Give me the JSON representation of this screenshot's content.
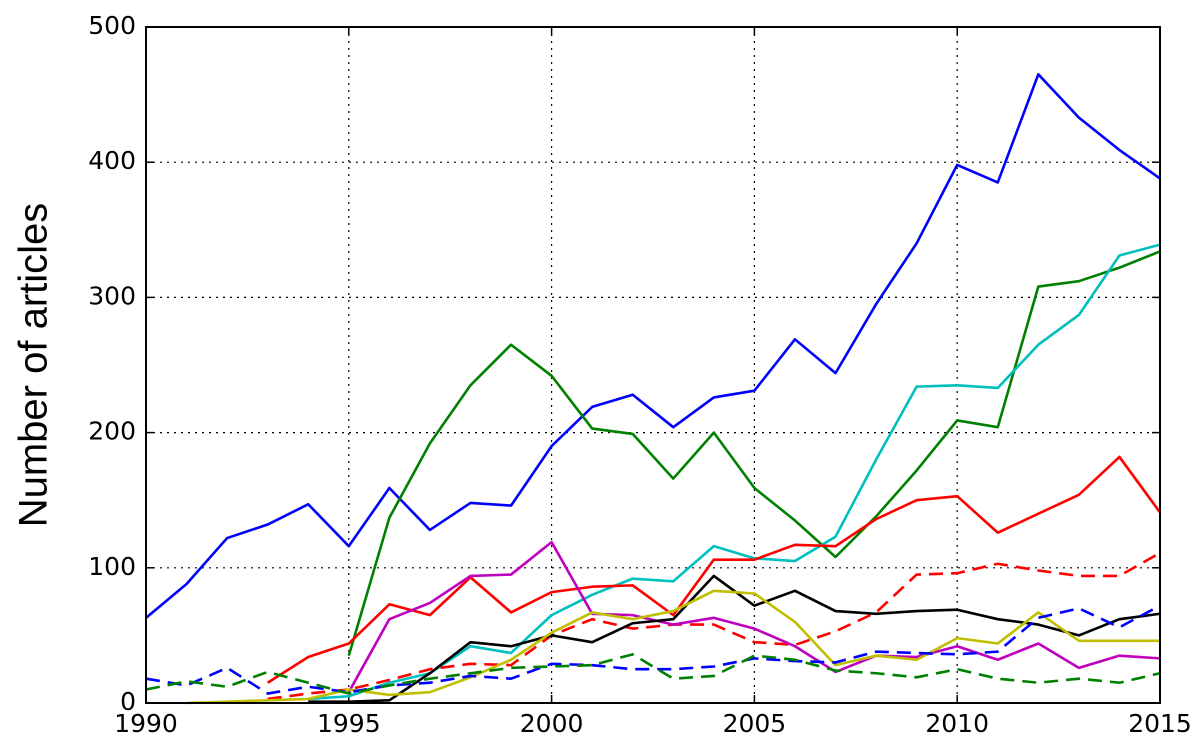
{
  "chart_data": {
    "type": "line",
    "y_label": "Number of articles",
    "x": [
      1990,
      1991,
      1992,
      1993,
      1994,
      1995,
      1996,
      1997,
      1998,
      1999,
      2000,
      2001,
      2002,
      2003,
      2004,
      2005,
      2006,
      2007,
      2008,
      2009,
      2010,
      2011,
      2012,
      2013,
      2014,
      2015
    ],
    "xlim": [
      1990,
      2015
    ],
    "xticks": [
      1990,
      1995,
      2000,
      2005,
      2010,
      2015
    ],
    "ylim": [
      0,
      500
    ],
    "yticks": [
      0,
      100,
      200,
      300,
      400,
      500
    ],
    "grid": true,
    "series": [
      {
        "color": "#0000ff",
        "dashed": false,
        "values": [
          63,
          88,
          122,
          132,
          147,
          116,
          159,
          128,
          148,
          146,
          190,
          219,
          228,
          204,
          226,
          231,
          269,
          244,
          295,
          340,
          398,
          385,
          465,
          433,
          409,
          388
        ]
      },
      {
        "color": "#008000",
        "dashed": false,
        "values": [
          null,
          null,
          null,
          null,
          null,
          35,
          137,
          192,
          235,
          265,
          242,
          203,
          199,
          166,
          200,
          159,
          135,
          108,
          138,
          172,
          209,
          204,
          308,
          312,
          322,
          334
        ]
      },
      {
        "color": "#00bfbf",
        "dashed": false,
        "values": [
          null,
          null,
          null,
          null,
          3,
          5,
          15,
          22,
          42,
          37,
          65,
          80,
          92,
          90,
          116,
          107,
          105,
          123,
          180,
          234,
          235,
          233,
          265,
          287,
          331,
          339
        ]
      },
      {
        "color": "#ff0000",
        "dashed": false,
        "values": [
          null,
          null,
          null,
          15,
          34,
          44,
          73,
          65,
          93,
          67,
          82,
          86,
          87,
          65,
          106,
          106,
          117,
          116,
          136,
          150,
          153,
          126,
          140,
          154,
          182,
          141
        ]
      },
      {
        "color": "#ff0000",
        "dashed": true,
        "values": [
          null,
          null,
          null,
          3,
          7,
          10,
          17,
          25,
          29,
          28,
          50,
          62,
          55,
          58,
          58,
          45,
          43,
          53,
          67,
          95,
          96,
          103,
          98,
          94,
          94,
          111
        ]
      },
      {
        "color": "#bf00bf",
        "dashed": false,
        "values": [
          null,
          null,
          null,
          null,
          null,
          8,
          62,
          74,
          94,
          95,
          119,
          66,
          65,
          58,
          63,
          55,
          42,
          23,
          35,
          34,
          42,
          32,
          44,
          26,
          35,
          33
        ]
      },
      {
        "color": "#000000",
        "dashed": false,
        "values": [
          null,
          null,
          null,
          null,
          1,
          1,
          2,
          22,
          45,
          42,
          50,
          45,
          59,
          62,
          94,
          72,
          83,
          68,
          66,
          68,
          69,
          62,
          58,
          50,
          62,
          66
        ]
      },
      {
        "color": "#bfbf00",
        "dashed": false,
        "values": [
          null,
          0,
          1,
          2,
          3,
          10,
          6,
          8,
          19,
          32,
          52,
          67,
          62,
          68,
          83,
          81,
          60,
          28,
          35,
          32,
          48,
          44,
          67,
          46,
          46,
          46
        ]
      },
      {
        "color": "#0000ff",
        "dashed": true,
        "values": [
          18,
          13,
          26,
          7,
          12,
          8,
          13,
          15,
          20,
          18,
          29,
          28,
          25,
          25,
          27,
          33,
          31,
          30,
          38,
          37,
          36,
          38,
          63,
          70,
          56,
          72
        ]
      },
      {
        "color": "#008000",
        "dashed": true,
        "values": [
          10,
          16,
          12,
          23,
          15,
          7,
          13,
          18,
          22,
          26,
          27,
          28,
          36,
          18,
          20,
          35,
          32,
          24,
          22,
          19,
          25,
          18,
          15,
          18,
          15,
          22
        ]
      }
    ]
  }
}
